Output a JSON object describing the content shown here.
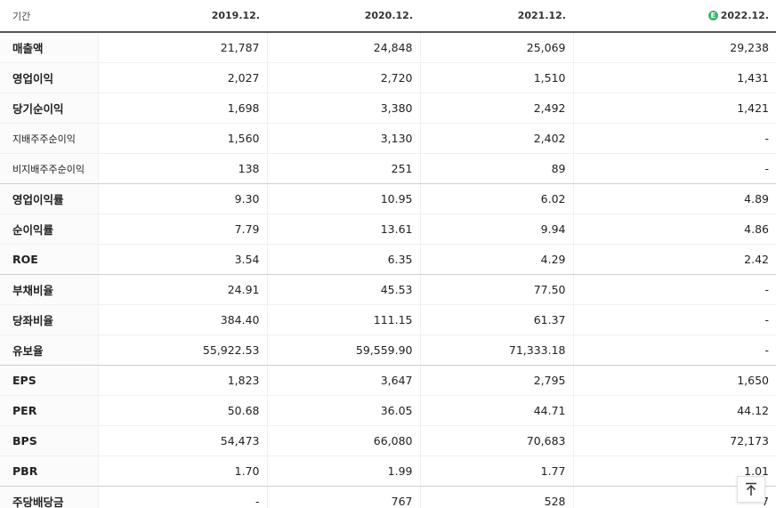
{
  "table": {
    "header_label": "기간",
    "estimate_badge": "E",
    "columns": [
      "2019.12.",
      "2020.12.",
      "2021.12.",
      "2022.12."
    ],
    "rows": [
      {
        "label": "매출액",
        "values": [
          "21,787",
          "24,848",
          "25,069",
          "29,238"
        ]
      },
      {
        "label": "영업이익",
        "values": [
          "2,027",
          "2,720",
          "1,510",
          "1,431"
        ]
      },
      {
        "label": "당기순이익",
        "values": [
          "1,698",
          "3,380",
          "2,492",
          "1,421"
        ]
      },
      {
        "label": "지배주주순이익",
        "values": [
          "1,560",
          "3,130",
          "2,402",
          "-"
        ]
      },
      {
        "label": "비지배주주순이익",
        "values": [
          "138",
          "251",
          "89",
          "-"
        ]
      },
      {
        "label": "영업이익률",
        "values": [
          "9.30",
          "10.95",
          "6.02",
          "4.89"
        ]
      },
      {
        "label": "순이익률",
        "values": [
          "7.79",
          "13.61",
          "9.94",
          "4.86"
        ]
      },
      {
        "label": "ROE",
        "values": [
          "3.54",
          "6.35",
          "4.29",
          "2.42"
        ]
      },
      {
        "label": "부채비율",
        "values": [
          "24.91",
          "45.53",
          "77.50",
          "-"
        ]
      },
      {
        "label": "당좌비율",
        "values": [
          "384.40",
          "111.15",
          "61.37",
          "-"
        ]
      },
      {
        "label": "유보율",
        "values": [
          "55,922.53",
          "59,559.90",
          "71,333.18",
          "-"
        ]
      },
      {
        "label": "EPS",
        "values": [
          "1,823",
          "3,647",
          "2,795",
          "1,650"
        ]
      },
      {
        "label": "PER",
        "values": [
          "50.68",
          "36.05",
          "44.71",
          "44.12"
        ]
      },
      {
        "label": "BPS",
        "values": [
          "54,473",
          "66,080",
          "70,683",
          "72,173"
        ]
      },
      {
        "label": "PBR",
        "values": [
          "1.70",
          "1.99",
          "1.77",
          "1.01"
        ]
      },
      {
        "label": "주당배당금",
        "values": [
          "-",
          "767",
          "528",
          "7"
        ]
      }
    ]
  },
  "scroll_top_icon": "arrow-up-icon",
  "colors": {
    "estimate_badge": "#3cb371",
    "header_rule": "#555555"
  }
}
